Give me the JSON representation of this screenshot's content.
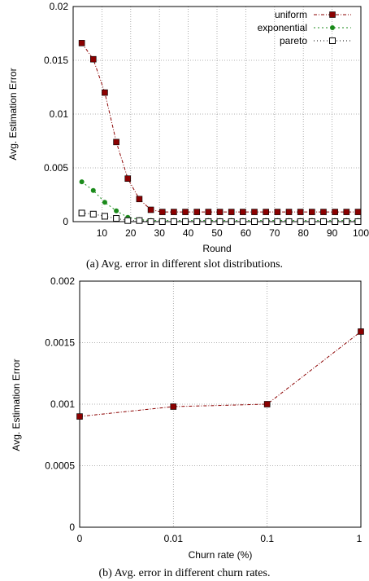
{
  "chart_data": [
    {
      "type": "line",
      "xlabel": "Round",
      "ylabel": "Avg. Estimation Error",
      "xlim": [
        0,
        100
      ],
      "ylim": [
        0,
        0.02
      ],
      "xticks": [
        "10",
        "20",
        "30",
        "40",
        "50",
        "60",
        "70",
        "80",
        "90",
        "100"
      ],
      "yticks": [
        "0",
        "0.005",
        "0.01",
        "0.015",
        "0.02"
      ],
      "grid": true,
      "legend_position": "top-right",
      "caption": "(a)  Avg. error in different slot distributions.",
      "series": [
        {
          "name": "uniform",
          "color": "#8b0000",
          "marker": "filled-square",
          "x": [
            3,
            7,
            11,
            15,
            19,
            23,
            27,
            31,
            35,
            39,
            43,
            47,
            51,
            55,
            59,
            63,
            67,
            71,
            75,
            79,
            83,
            87,
            91,
            95,
            99
          ],
          "y": [
            0.0166,
            0.0151,
            0.012,
            0.0074,
            0.004,
            0.0021,
            0.0011,
            0.0009,
            0.0009,
            0.0009,
            0.0009,
            0.0009,
            0.0009,
            0.0009,
            0.0009,
            0.0009,
            0.0009,
            0.0009,
            0.0009,
            0.0009,
            0.0009,
            0.0009,
            0.0009,
            0.0009,
            0.0009
          ]
        },
        {
          "name": "exponential",
          "color": "#1a8a1a",
          "marker": "filled-circle",
          "x": [
            3,
            7,
            11,
            15,
            19,
            23,
            27,
            31,
            35,
            39,
            43,
            47,
            51,
            55,
            59,
            63,
            67,
            71,
            75,
            79,
            83,
            87,
            91,
            95,
            99
          ],
          "y": [
            0.0037,
            0.0029,
            0.0018,
            0.001,
            0.0004,
            0.0002,
            0.0001,
            0.0001,
            0.0001,
            0.0001,
            0.0001,
            0.0001,
            0.0001,
            0.0001,
            0.0001,
            0.0001,
            0.0001,
            0.0001,
            0.0001,
            0.0001,
            0.0001,
            0.0001,
            0.0001,
            0.0001,
            0.0001
          ]
        },
        {
          "name": "pareto",
          "color": "#000000",
          "marker": "open-square",
          "x": [
            3,
            7,
            11,
            15,
            19,
            23,
            27,
            31,
            35,
            39,
            43,
            47,
            51,
            55,
            59,
            63,
            67,
            71,
            75,
            79,
            83,
            87,
            91,
            95,
            99
          ],
          "y": [
            0.0008,
            0.0007,
            0.0005,
            0.0003,
            0.0001,
            0.0001,
            0.0,
            0.0,
            0.0,
            0.0,
            0.0,
            0.0,
            0.0,
            0.0,
            0.0,
            0.0,
            0.0,
            0.0,
            0.0,
            0.0,
            0.0,
            0.0,
            0.0,
            0.0,
            0.0
          ]
        }
      ]
    },
    {
      "type": "line",
      "xlabel": "Churn rate (%)",
      "ylabel": "Avg. Estimation Error",
      "categories": [
        "0",
        "0.01",
        "0.1",
        "1"
      ],
      "ylim": [
        0,
        0.002
      ],
      "yticks": [
        "0",
        "0.0005",
        "0.001",
        "0.0015",
        "0.002"
      ],
      "grid": true,
      "caption": "(b)  Avg. error in different churn rates.",
      "series": [
        {
          "color": "#8b0000",
          "marker": "filled-square",
          "values": [
            0.0009,
            0.00098,
            0.001,
            0.00159
          ]
        }
      ]
    }
  ]
}
